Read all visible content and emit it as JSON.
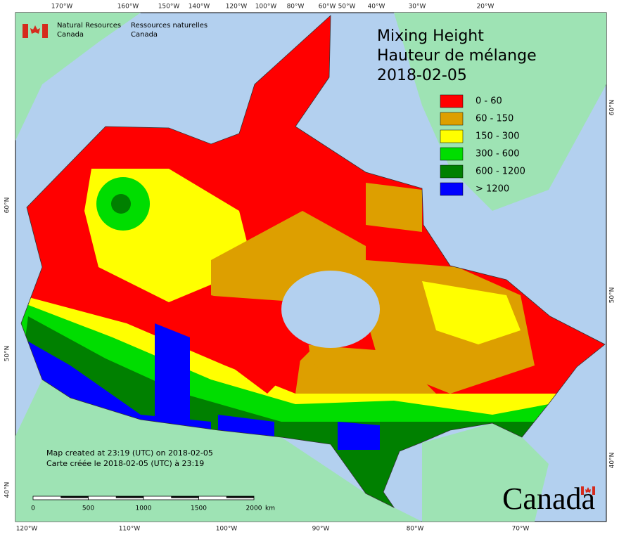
{
  "header": {
    "agency_en": [
      "Natural Resources",
      "Canada"
    ],
    "agency_fr": [
      "Ressources naturelles",
      "Canada"
    ]
  },
  "title": [
    "Mixing Height",
    "Hauteur de mélange",
    "2018-02-05"
  ],
  "legend": [
    {
      "label": "0 - 60",
      "color": "#ff0000"
    },
    {
      "label": "60 - 150",
      "color": "#dd9f00"
    },
    {
      "label": "150 - 300",
      "color": "#ffff00"
    },
    {
      "label": "300 - 600",
      "color": "#00dd00"
    },
    {
      "label": "600 - 1200",
      "color": "#008000"
    },
    {
      "label": "> 1200",
      "color": "#0000ff"
    }
  ],
  "top_longitudes": [
    "170°W",
    "160°W",
    "150°W",
    "140°W",
    "120°W",
    "100°W",
    "80°W",
    "60°W",
    "50°W",
    "40°W",
    "30°W",
    "20°W"
  ],
  "bottom_longitudes": [
    "120°W",
    "110°W",
    "100°W",
    "90°W",
    "80°W",
    "70°W"
  ],
  "left_latitudes": [
    "60°N",
    "50°N",
    "40°N"
  ],
  "right_latitudes": [
    "60°N",
    "50°N",
    "40°N"
  ],
  "footer": [
    "Map created at 23:19 (UTC) on 2018-02-05",
    "Carte créée le 2018-02-05 (UTC) à 23:19"
  ],
  "scale_bar": {
    "ticks": [
      "0",
      "500",
      "1000",
      "1500",
      "2000"
    ],
    "unit": "km"
  },
  "wordmark": "Canada"
}
